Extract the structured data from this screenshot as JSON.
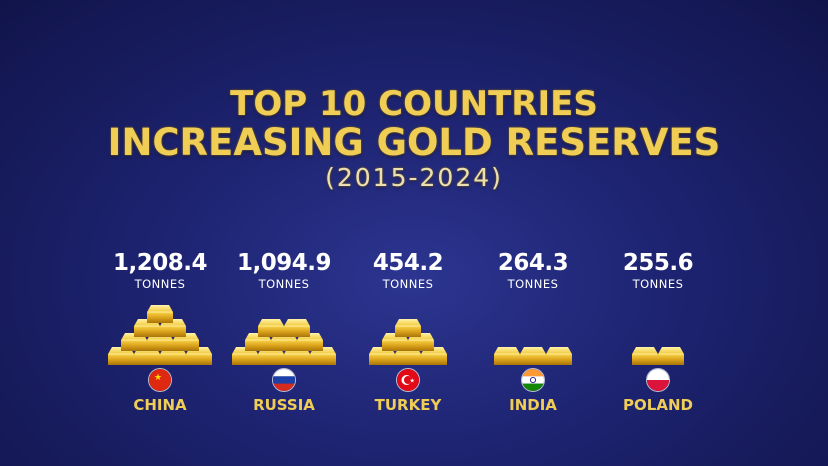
{
  "header": {
    "line1": "TOP 10 COUNTRIES",
    "line2": "INCREASING GOLD RESERVES",
    "line3": "(2015-2024)"
  },
  "chart_data": {
    "type": "table",
    "title": "TOP 10 COUNTRIES INCREASING GOLD RESERVES (2015-2024)",
    "unit": "TONNES",
    "categories": [
      "CHINA",
      "RUSSIA",
      "TURKEY",
      "INDIA",
      "POLAND"
    ],
    "values": [
      1208.4,
      1094.9,
      454.2,
      264.3,
      255.6
    ],
    "value_labels": [
      "1,208.4",
      "1,094.9",
      "454.2",
      "264.3",
      "255.6"
    ],
    "gold_bar_counts": [
      10,
      9,
      6,
      3,
      2
    ],
    "flags": [
      "china-flag",
      "russia-flag",
      "turkey-flag",
      "india-flag",
      "poland-flag"
    ]
  },
  "colors": {
    "gold": "#f0cd55",
    "background": "#1d2370"
  }
}
